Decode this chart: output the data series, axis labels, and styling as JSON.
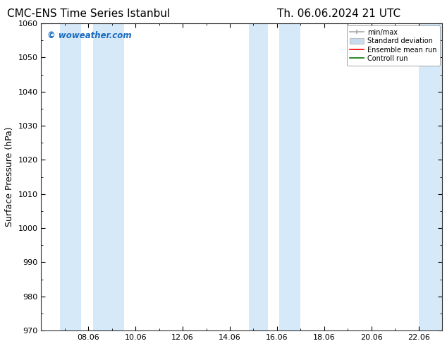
{
  "title_left": "CMC-ENS Time Series Istanbul",
  "title_right": "Th. 06.06.2024 21 UTC",
  "ylabel": "Surface Pressure (hPa)",
  "ylim": [
    970,
    1060
  ],
  "yticks": [
    970,
    980,
    990,
    1000,
    1010,
    1020,
    1030,
    1040,
    1050,
    1060
  ],
  "xtick_labels": [
    "08.06",
    "10.06",
    "12.06",
    "14.06",
    "16.06",
    "18.06",
    "20.06",
    "22.06"
  ],
  "watermark": "© woweather.com",
  "watermark_color": "#1a6bbf",
  "bg_color": "#ffffff",
  "shaded_color": "#d6e9f8",
  "legend_items": [
    {
      "label": "min/max",
      "color": "#aaaaaa",
      "lw": 1.2
    },
    {
      "label": "Standard deviation",
      "color": "#c8dced",
      "lw": 5
    },
    {
      "label": "Ensemble mean run",
      "color": "#ff0000",
      "lw": 1.2
    },
    {
      "label": "Controll run",
      "color": "#007700",
      "lw": 1.2
    }
  ],
  "title_fontsize": 11,
  "tick_fontsize": 8,
  "ylabel_fontsize": 9,
  "legend_fontsize": 7
}
